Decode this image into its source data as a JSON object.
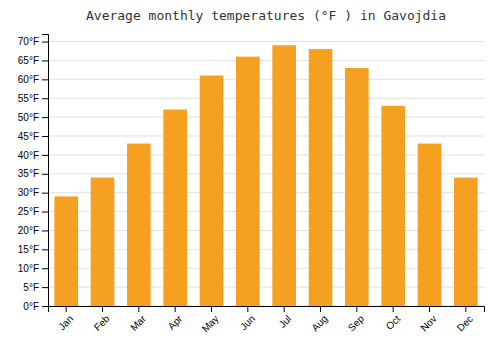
{
  "chart_data": {
    "type": "bar",
    "title": "Average monthly temperatures (°F ) in Gavojdia",
    "categories": [
      "Jan",
      "Feb",
      "Mar",
      "Apr",
      "May",
      "Jun",
      "Jul",
      "Aug",
      "Sep",
      "Oct",
      "Nov",
      "Dec"
    ],
    "values": [
      29,
      34,
      43,
      52,
      61,
      66,
      69,
      68,
      63,
      53,
      43,
      34
    ],
    "color": "#F5A020",
    "ylim": [
      0,
      72
    ],
    "yticks": [
      {
        "value": 0,
        "label": "0°F"
      },
      {
        "value": 5,
        "label": "5°F"
      },
      {
        "value": 10,
        "label": "10°F"
      },
      {
        "value": 15,
        "label": "15°F"
      },
      {
        "value": 20,
        "label": "20°F"
      },
      {
        "value": 25,
        "label": "25°F"
      },
      {
        "value": 30,
        "label": "30°F"
      },
      {
        "value": 35,
        "label": "35°F"
      },
      {
        "value": 40,
        "label": "40°F"
      },
      {
        "value": 45,
        "label": "45°F"
      },
      {
        "value": 50,
        "label": "50°F"
      },
      {
        "value": 55,
        "label": "55°F"
      },
      {
        "value": 60,
        "label": "60°F"
      },
      {
        "value": 65,
        "label": "65°F"
      },
      {
        "value": 70,
        "label": "70°F"
      }
    ],
    "grid": true
  }
}
